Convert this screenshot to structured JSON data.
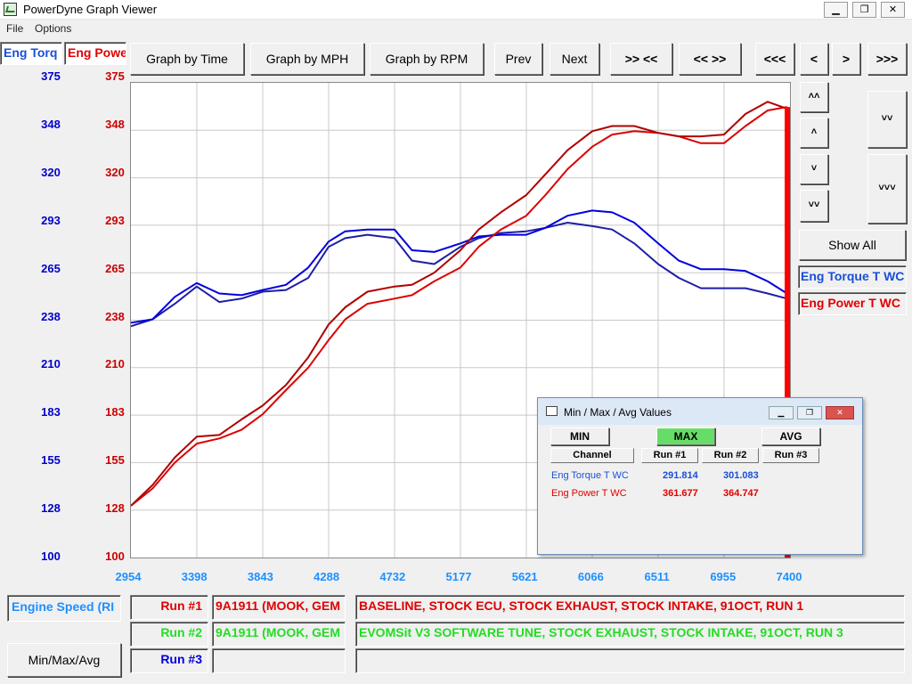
{
  "window": {
    "title": "PowerDyne Graph Viewer",
    "minimize": "▁",
    "maximize": "❐",
    "close": "✕"
  },
  "menu": [
    "File",
    "Options"
  ],
  "channels": {
    "left": "Eng Torq",
    "right": "Eng Powe"
  },
  "toolbar": {
    "graph_time": "Graph by Time",
    "graph_mph": "Graph by MPH",
    "graph_rpm": "Graph by RPM",
    "prev": "Prev",
    "next": "Next",
    "zoom_in": ">> <<",
    "zoom_out": "<< >>",
    "first": "<<<",
    "back": "<",
    "forward": ">",
    "last": ">>>"
  },
  "side": {
    "up_fast": "˄˄",
    "up": "˄",
    "down": "˅",
    "down_fast": "˅˅",
    "zoom_y_in": "˅˅",
    "zoom_y_out": "˅˅˅",
    "show_all": "Show All",
    "legend_torque": "Eng Torque T WC",
    "legend_power": "Eng Power T WC"
  },
  "colors": {
    "torque": "#0000cc",
    "power": "#cc0000",
    "run1": "#e00000",
    "run2": "#22dd22",
    "run3": "#0000dd",
    "axis_x": "#1e90ff",
    "cursor": "#ff0000"
  },
  "chart_data": {
    "type": "line",
    "xlabel": "Engine Speed (RI",
    "x_ticks": [
      "2954",
      "3398",
      "3843",
      "4288",
      "4732",
      "5177",
      "5621",
      "6066",
      "6511",
      "6955",
      "7400"
    ],
    "y_ticks_torque": [
      "375",
      "348",
      "320",
      "293",
      "265",
      "238",
      "210",
      "183",
      "155",
      "128",
      "100"
    ],
    "y_ticks_power": [
      "375",
      "348",
      "320",
      "293",
      "265",
      "238",
      "210",
      "183",
      "155",
      "128",
      "100"
    ],
    "xlim": [
      2954,
      7400
    ],
    "ylim": [
      100,
      375
    ],
    "cursor_x": 7400,
    "series": [
      {
        "name": "Eng Torque T WC",
        "run": 1,
        "color": "#1e1ea8",
        "x": [
          2954,
          3100,
          3250,
          3398,
          3550,
          3700,
          3843,
          4000,
          4150,
          4288,
          4400,
          4550,
          4732,
          4850,
          5000,
          5177,
          5300,
          5450,
          5621,
          5750,
          5900,
          6066,
          6200,
          6350,
          6511,
          6650,
          6800,
          6955,
          7100,
          7250,
          7380
        ],
        "y": [
          234,
          238,
          247,
          257,
          248,
          250,
          254,
          255,
          262,
          280,
          285,
          287,
          285,
          272,
          270,
          280,
          285,
          288,
          289,
          291,
          294,
          292,
          290,
          282,
          270,
          262,
          256,
          256,
          256,
          253,
          250
        ]
      },
      {
        "name": "Eng Torque T WC",
        "run": 2,
        "color": "#0000dd",
        "x": [
          2954,
          3100,
          3250,
          3398,
          3550,
          3700,
          3843,
          4000,
          4150,
          4288,
          4400,
          4550,
          4732,
          4850,
          5000,
          5177,
          5300,
          5450,
          5621,
          5750,
          5900,
          6066,
          6200,
          6350,
          6511,
          6650,
          6800,
          6955,
          7100,
          7250,
          7380
        ],
        "y": [
          236,
          238,
          251,
          259,
          253,
          252,
          255,
          258,
          268,
          283,
          289,
          290,
          290,
          278,
          277,
          282,
          286,
          287,
          287,
          291,
          298,
          301,
          300,
          294,
          282,
          272,
          267,
          267,
          266,
          260,
          253
        ]
      },
      {
        "name": "Eng Power T WC",
        "run": 1,
        "color": "#dd0000",
        "x": [
          2954,
          3100,
          3250,
          3398,
          3550,
          3700,
          3843,
          4000,
          4150,
          4288,
          4400,
          4550,
          4732,
          4850,
          5000,
          5177,
          5300,
          5450,
          5621,
          5750,
          5900,
          6066,
          6200,
          6350,
          6511,
          6650,
          6800,
          6955,
          7100,
          7250,
          7380
        ],
        "y": [
          130,
          140,
          155,
          166,
          169,
          174,
          183,
          197,
          210,
          226,
          238,
          247,
          250,
          252,
          260,
          268,
          280,
          290,
          298,
          310,
          325,
          338,
          345,
          347,
          346,
          344,
          340,
          340,
          350,
          359,
          361
        ]
      },
      {
        "name": "Eng Power T WC",
        "run": 2,
        "color": "#b00000",
        "x": [
          2954,
          3100,
          3250,
          3398,
          3550,
          3700,
          3843,
          4000,
          4150,
          4288,
          4400,
          4550,
          4732,
          4850,
          5000,
          5177,
          5300,
          5450,
          5621,
          5750,
          5900,
          6066,
          6200,
          6350,
          6511,
          6650,
          6800,
          6955,
          7100,
          7250,
          7380
        ],
        "y": [
          130,
          142,
          158,
          170,
          171,
          180,
          188,
          200,
          216,
          235,
          245,
          254,
          257,
          258,
          265,
          278,
          290,
          300,
          310,
          322,
          336,
          347,
          350,
          350,
          346,
          344,
          344,
          345,
          357,
          364,
          360
        ]
      }
    ]
  },
  "runs": [
    {
      "label": "Run #1",
      "vehicle": "9A1911 (MOOK, GEM",
      "desc": "BASELINE, STOCK ECU, STOCK EXHAUST, STOCK INTAKE, 91OCT, RUN 1"
    },
    {
      "label": "Run #2",
      "vehicle": "9A1911 (MOOK, GEM",
      "desc": "EVOMSit V3 SOFTWARE TUNE, STOCK EXHAUST, STOCK INTAKE, 91OCT, RUN 3"
    },
    {
      "label": "Run #3",
      "vehicle": "",
      "desc": ""
    }
  ],
  "minmax_button": "Min/Max/Avg",
  "dialog": {
    "title": "Min / Max / Avg Values",
    "min": "MIN",
    "max": "MAX",
    "avg": "AVG",
    "headers": [
      "Channel",
      "Run #1",
      "Run #2",
      "Run #3"
    ],
    "rows": [
      {
        "channel": "Eng Torque T WC",
        "run1": "291.814",
        "run2": "301.083",
        "run3": ""
      },
      {
        "channel": "Eng Power T WC",
        "run1": "361.677",
        "run2": "364.747",
        "run3": ""
      }
    ]
  }
}
